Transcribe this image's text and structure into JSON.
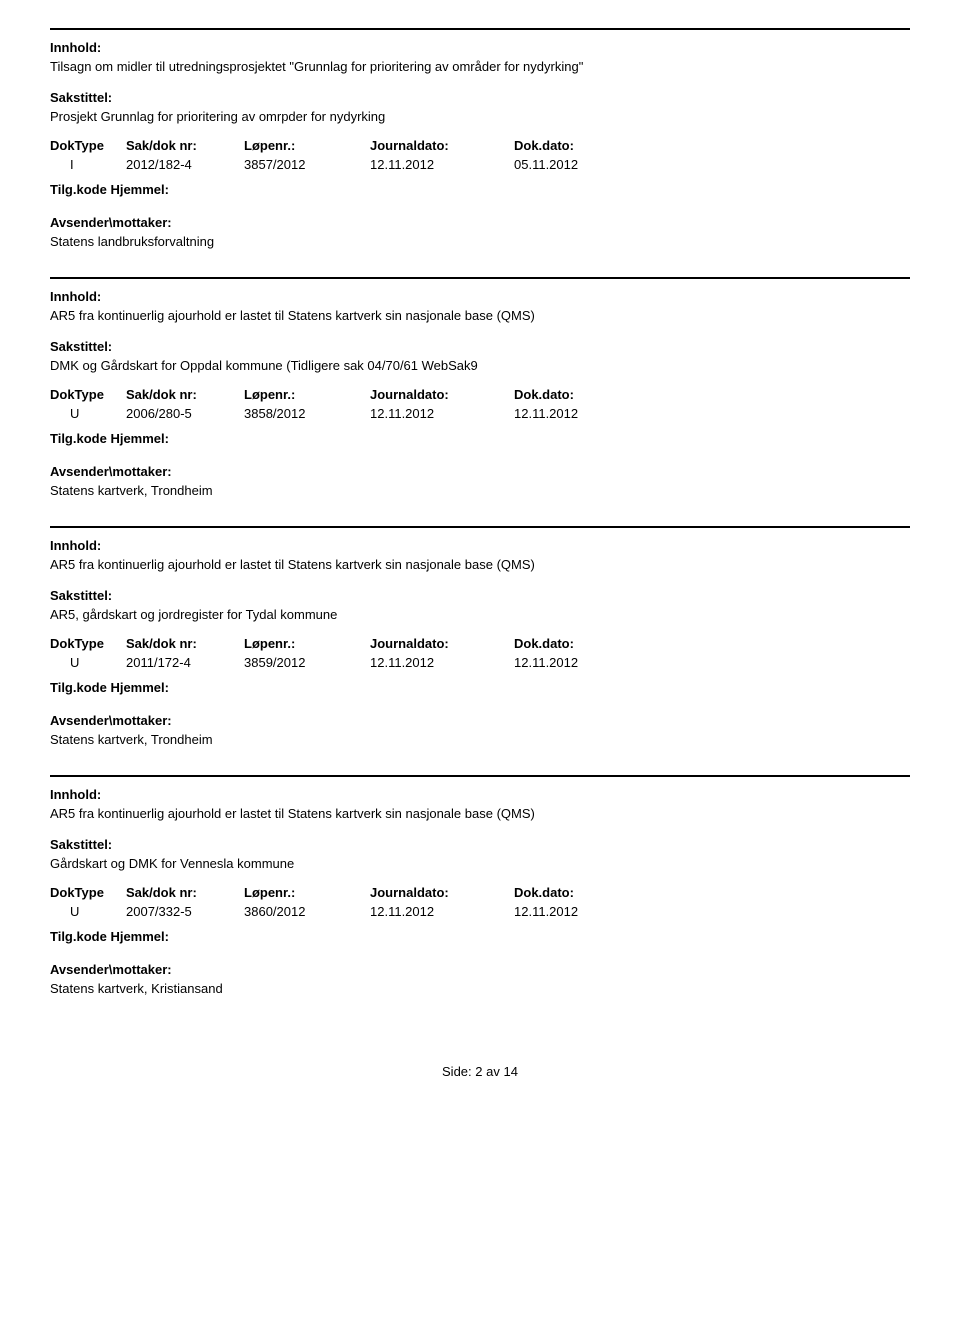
{
  "labels": {
    "innhold": "Innhold:",
    "sakstittel": "Sakstittel:",
    "doktype": "DokType",
    "saknr": "Sak/dok nr:",
    "lopenr": "Løpenr.:",
    "journaldato": "Journaldato:",
    "dokdato": "Dok.dato:",
    "tilgkode": "Tilg.kode",
    "hjemmel": "Hjemmel:",
    "avsender": "Avsender\\mottaker:"
  },
  "records": [
    {
      "innhold": "Tilsagn om midler til utredningsprosjektet \"Grunnlag for prioritering av områder for nydyrking\"",
      "sakstittel": "Prosjekt Grunnlag for prioritering av omrpder for nydyrking",
      "doktype": "I",
      "saknr": "2012/182-4",
      "lopenr": "3857/2012",
      "journaldato": "12.11.2012",
      "dokdato": "05.11.2012",
      "avsender": "Statens landbruksforvaltning"
    },
    {
      "innhold": "AR5 fra kontinuerlig ajourhold er lastet til Statens kartverk sin nasjonale base (QMS)",
      "sakstittel": "DMK og Gårdskart for Oppdal kommune (Tidligere sak 04/70/61 WebSak9",
      "doktype": "U",
      "saknr": "2006/280-5",
      "lopenr": "3858/2012",
      "journaldato": "12.11.2012",
      "dokdato": "12.11.2012",
      "avsender": "Statens kartverk, Trondheim"
    },
    {
      "innhold": "AR5 fra kontinuerlig ajourhold er lastet til Statens kartverk sin nasjonale base (QMS)",
      "sakstittel": "AR5, gårdskart og jordregister for Tydal kommune",
      "doktype": "U",
      "saknr": "2011/172-4",
      "lopenr": "3859/2012",
      "journaldato": "12.11.2012",
      "dokdato": "12.11.2012",
      "avsender": "Statens kartverk, Trondheim"
    },
    {
      "innhold": "AR5 fra kontinuerlig ajourhold er lastet til Statens kartverk sin nasjonale base (QMS)",
      "sakstittel": "Gårdskart og DMK for Vennesla kommune",
      "doktype": "U",
      "saknr": "2007/332-5",
      "lopenr": "3860/2012",
      "journaldato": "12.11.2012",
      "dokdato": "12.11.2012",
      "avsender": "Statens kartverk, Kristiansand"
    }
  ],
  "footer": {
    "prefix": "Side:",
    "page": "2",
    "sep": "av",
    "total": "14"
  }
}
